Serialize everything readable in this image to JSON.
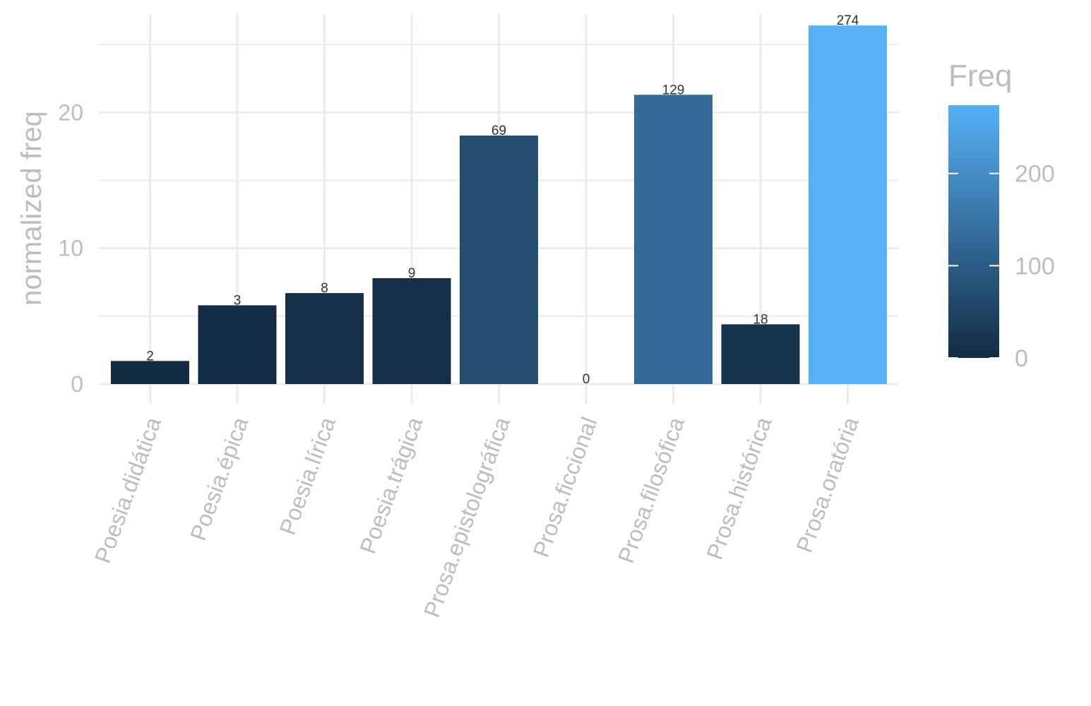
{
  "chart_data": {
    "type": "bar",
    "title": "",
    "xlabel": "",
    "ylabel": "normalized freq",
    "categories": [
      "Poesia.didática",
      "Poesia.épica",
      "Poesia.lírica",
      "Poesia.trágica",
      "Prosa.epistolográfica",
      "Prosa.ficcional",
      "Prosa.filosófica",
      "Prosa.histórica",
      "Prosa.oratória"
    ],
    "values": [
      1.7,
      5.8,
      6.7,
      7.8,
      18.3,
      0,
      21.3,
      4.4,
      26.4
    ],
    "freq": [
      2,
      3,
      8,
      9,
      69,
      0,
      129,
      18,
      274
    ],
    "data_labels": [
      "2",
      "3",
      "8",
      "9",
      "69",
      "0",
      "129",
      "18",
      "274"
    ],
    "ylim": [
      0,
      27.5
    ],
    "yticks": [
      0,
      10,
      20
    ],
    "ytick_labels": [
      "0",
      "10",
      "20"
    ],
    "grid": true,
    "legend": {
      "title": "Freq",
      "position": "right",
      "range": [
        0,
        274
      ],
      "ticks": [
        0,
        100,
        200
      ],
      "tick_labels": [
        "0",
        "100",
        "200"
      ],
      "low_color": "#132B43",
      "high_color": "#56B1F7"
    }
  }
}
